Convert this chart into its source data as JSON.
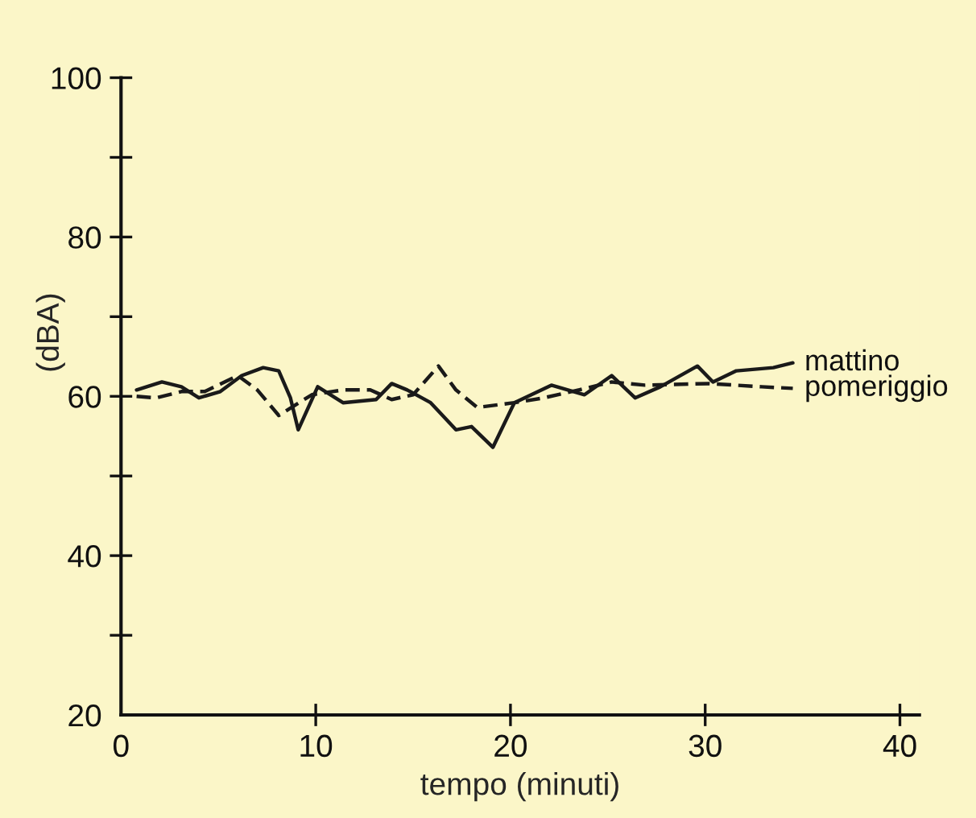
{
  "chart_data": {
    "type": "line",
    "xlabel": "tempo (minuti)",
    "ylabel": "(dBA)",
    "xlim": [
      0,
      41
    ],
    "ylim": [
      20,
      100
    ],
    "xticks": [
      0,
      10,
      20,
      30,
      40
    ],
    "yticks": [
      20,
      {
        "value": 30,
        "label": null
      },
      40,
      {
        "value": 50,
        "label": null
      },
      60,
      {
        "value": 70,
        "label": null
      },
      80,
      {
        "value": 90,
        "label": null
      },
      100
    ],
    "grid": false,
    "legend": false,
    "marker": "none",
    "series": [
      {
        "name": "mattino",
        "color": "#1a1a1a",
        "line_style": "solid",
        "x": [
          0.8,
          2.1,
          3.1,
          4.0,
          5.1,
          6.2,
          7.3,
          8.1,
          8.7,
          9.1,
          10.1,
          11.4,
          13.1,
          13.9,
          14.7,
          15.9,
          17.2,
          18.0,
          19.1,
          20.2,
          22.1,
          23.8,
          25.2,
          26.4,
          27.7,
          29.6,
          30.4,
          31.6,
          33.5,
          34.5
        ],
        "values": [
          60.8,
          61.8,
          61.2,
          59.8,
          60.6,
          62.6,
          63.6,
          63.2,
          59.8,
          55.8,
          61.2,
          59.2,
          59.6,
          61.6,
          60.8,
          59.2,
          55.8,
          56.2,
          53.6,
          59.2,
          61.4,
          60.2,
          62.6,
          59.8,
          61.2,
          63.8,
          61.8,
          63.2,
          63.6,
          64.2
        ]
      },
      {
        "name": "pomeriggio",
        "color": "#1a1a1a",
        "line_style": "dashed",
        "x": [
          0.8,
          1.8,
          3.1,
          4.3,
          6.0,
          7.0,
          8.1,
          9.8,
          11.4,
          12.8,
          13.9,
          15.0,
          16.3,
          17.2,
          18.3,
          20.2,
          21.7,
          23.5,
          25.2,
          26.9,
          30.2,
          32.9,
          34.5
        ],
        "values": [
          60.0,
          59.8,
          60.6,
          60.6,
          62.6,
          60.8,
          57.6,
          60.2,
          60.8,
          60.8,
          59.6,
          60.2,
          63.8,
          60.8,
          58.6,
          59.2,
          59.8,
          60.8,
          61.8,
          61.4,
          61.6,
          61.2,
          61.0
        ]
      }
    ]
  }
}
